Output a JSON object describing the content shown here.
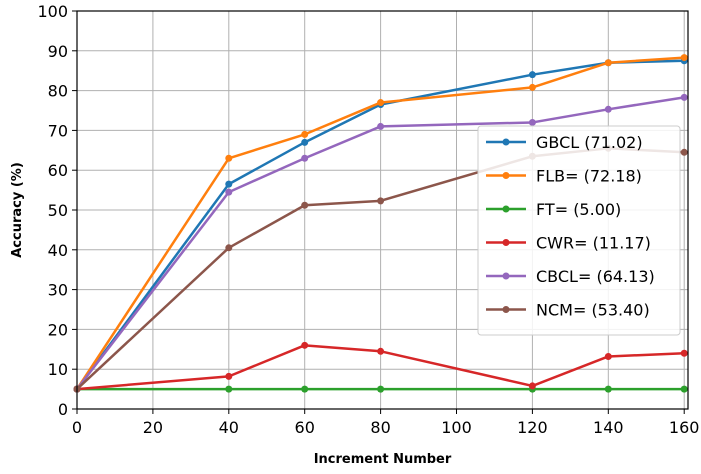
{
  "chart_data": {
    "type": "line",
    "xlabel": "Increment Number",
    "ylabel": "Accuracy (%)",
    "xlim": [
      0,
      161
    ],
    "ylim": [
      0,
      100
    ],
    "xticks": [
      0,
      20,
      40,
      60,
      80,
      100,
      120,
      140,
      160
    ],
    "yticks": [
      0,
      10,
      20,
      30,
      40,
      50,
      60,
      70,
      80,
      90,
      100
    ],
    "grid": true,
    "legend_position": "center-right",
    "series": [
      {
        "name": "GBCL (71.02)",
        "color": "#1f77b4",
        "x": [
          0,
          40,
          60,
          80,
          120,
          140,
          160
        ],
        "y": [
          5,
          56.5,
          67,
          76.5,
          84,
          87,
          87.5
        ]
      },
      {
        "name": "FLB= (72.18)",
        "color": "#ff7f0e",
        "x": [
          0,
          40,
          60,
          80,
          120,
          140,
          160
        ],
        "y": [
          5,
          63,
          69,
          77,
          80.8,
          87,
          88.3
        ]
      },
      {
        "name": "FT= (5.00)",
        "color": "#2ca02c",
        "x": [
          0,
          40,
          60,
          80,
          120,
          140,
          160
        ],
        "y": [
          5,
          5,
          5,
          5,
          5,
          5,
          5
        ]
      },
      {
        "name": "CWR= (11.17)",
        "color": "#d62728",
        "x": [
          0,
          40,
          60,
          80,
          120,
          140,
          160
        ],
        "y": [
          5,
          8.2,
          16,
          14.5,
          5.8,
          13.2,
          14
        ]
      },
      {
        "name": "CBCL= (64.13)",
        "color": "#9467bd",
        "x": [
          0,
          40,
          60,
          80,
          120,
          140,
          160
        ],
        "y": [
          5,
          54.5,
          63,
          71,
          72,
          75.3,
          78.3
        ]
      },
      {
        "name": "NCM= (53.40)",
        "color": "#8c564b",
        "x": [
          0,
          40,
          60,
          80,
          120,
          140,
          160
        ],
        "y": [
          5,
          40.5,
          51.2,
          52.3,
          63.5,
          65.5,
          64.5
        ]
      }
    ]
  }
}
